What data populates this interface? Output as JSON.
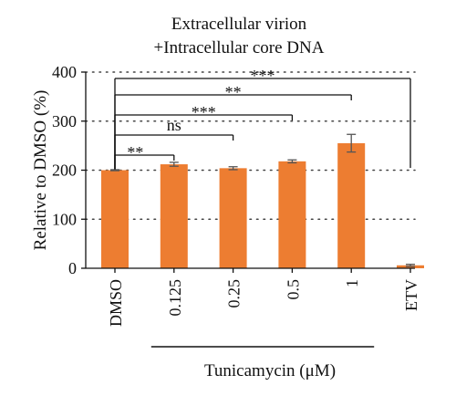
{
  "chart_data": {
    "type": "bar",
    "title_lines": [
      "Extracellular virion",
      "+Intracellular core DNA"
    ],
    "ylabel": "Relative to DMSO (%)",
    "xlabel": "",
    "ylim": [
      0,
      400
    ],
    "yticks": [
      0,
      100,
      200,
      300,
      400
    ],
    "grid": "dotted-horizontal",
    "categories": [
      "DMSO",
      "0.125",
      "0.25",
      "0.5",
      "1",
      "ETV"
    ],
    "series": [
      {
        "values": [
          200,
          212,
          204,
          218,
          255,
          6
        ],
        "errors": [
          1,
          4,
          3,
          3,
          18,
          2
        ],
        "color": "#ED7D31"
      }
    ],
    "group_label": "Tunicamycin (μM)",
    "group_span": [
      "0.125",
      "1"
    ],
    "significance": [
      {
        "from": "DMSO",
        "to": "0.125",
        "label": "**"
      },
      {
        "from": "DMSO",
        "to": "0.25",
        "label": "ns"
      },
      {
        "from": "DMSO",
        "to": "0.5",
        "label": "***"
      },
      {
        "from": "DMSO",
        "to": "1",
        "label": "**"
      },
      {
        "from": "DMSO",
        "to": "ETV",
        "label": "***"
      }
    ]
  }
}
